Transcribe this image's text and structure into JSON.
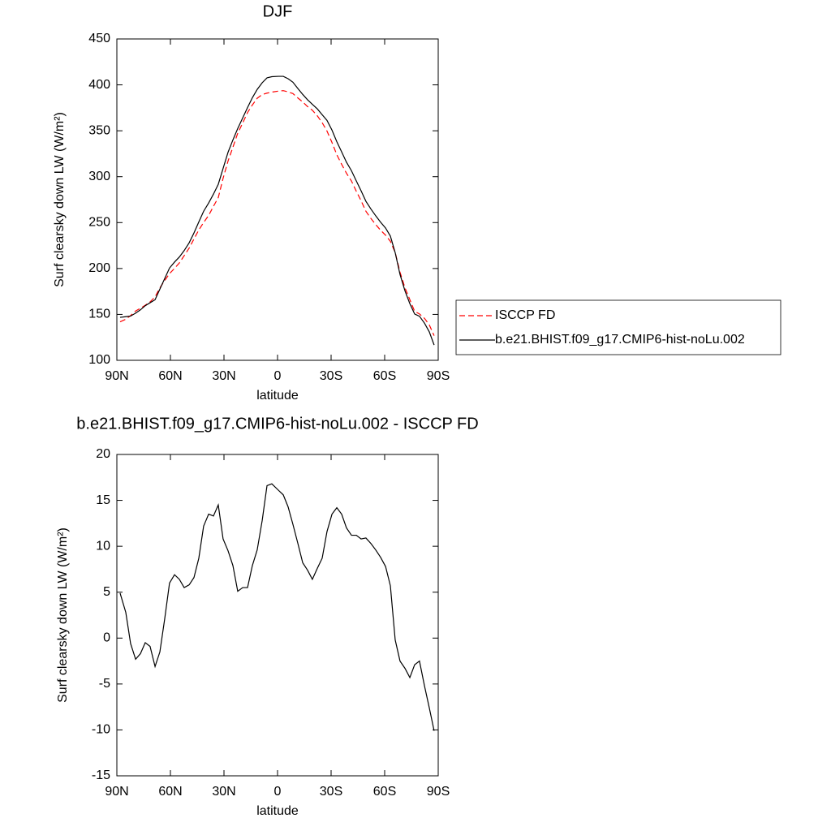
{
  "chart_data": [
    {
      "type": "line",
      "title": "DJF",
      "x_label": "latitude",
      "y_label": "Surf clearsky down LW (W/m²)",
      "x": [
        88.2,
        85.0,
        82.3,
        79.5,
        76.8,
        74.1,
        71.4,
        68.6,
        65.9,
        63.2,
        60.5,
        57.7,
        55.0,
        52.3,
        49.5,
        46.8,
        44.1,
        41.4,
        38.6,
        35.9,
        33.2,
        30.5,
        27.7,
        25.0,
        22.3,
        19.5,
        16.8,
        14.1,
        11.4,
        8.6,
        5.9,
        3.2,
        -0.5,
        -3.2,
        -5.9,
        -8.6,
        -11.4,
        -14.1,
        -16.8,
        -19.5,
        -22.3,
        -25.0,
        -27.7,
        -30.5,
        -33.2,
        -35.9,
        -38.6,
        -41.4,
        -44.1,
        -46.8,
        -49.5,
        -52.3,
        -55.0,
        -57.7,
        -60.5,
        -63.2,
        -65.9,
        -68.6,
        -71.4,
        -74.1,
        -76.8,
        -79.5,
        -82.3,
        -85.0,
        -87.7
      ],
      "series": [
        {
          "name": "ISCCP FD",
          "color": "#ff0000",
          "line_style": "dashed",
          "values": [
            141.9,
            144.7,
            148.8,
            153.7,
            156.7,
            160,
            163.6,
            169.1,
            179,
            186.9,
            194.5,
            200.1,
            206.1,
            214,
            222.2,
            232.2,
            242,
            250.1,
            257.8,
            267.7,
            277.2,
            298.2,
            317.2,
            332.1,
            347.3,
            358.5,
            369.8,
            378.1,
            385.4,
            389.5,
            391,
            392.1,
            393.2,
            393.7,
            392.4,
            390.5,
            385.7,
            381.4,
            376.4,
            372.4,
            366.2,
            358.8,
            349.7,
            337.2,
            323.9,
            313.5,
            303.8,
            295.3,
            284.2,
            273.8,
            262.3,
            254.5,
            247.8,
            241.7,
            236.3,
            229.6,
            217.4,
            196,
            178.8,
            166.1,
            153.3,
            150.5,
            145.7,
            138.6,
            126.8
          ]
        },
        {
          "name": "b.e21.BHIST.f09_g17.CMIP6-hist-noLu.002",
          "color": "#000000",
          "line_style": "solid",
          "values": [
            146.8,
            147.5,
            148.2,
            151.4,
            155,
            159.5,
            162.7,
            166,
            177.5,
            189,
            200.5,
            207,
            212.5,
            219.5,
            228,
            238.8,
            250.7,
            262.3,
            271.3,
            281,
            291.7,
            309,
            326.7,
            340,
            352.4,
            364,
            375.3,
            386,
            395,
            402.3,
            407.6,
            408.9,
            409.3,
            409.3,
            406.7,
            402.9,
            396,
            389.6,
            383.8,
            378.8,
            373.8,
            367.5,
            361.3,
            350.7,
            338.1,
            327,
            315.8,
            306.5,
            295.4,
            284.6,
            273.2,
            264.8,
            257.4,
            250.5,
            244.1,
            235.3,
            217.2,
            193.5,
            175.5,
            161.8,
            150.4,
            148,
            140.5,
            131,
            116.7
          ]
        }
      ],
      "xlim": [
        90,
        -90
      ],
      "xticks": [
        {
          "value": 90,
          "label": "90N"
        },
        {
          "value": 60,
          "label": "60N"
        },
        {
          "value": 30,
          "label": "30N"
        },
        0,
        {
          "value": -30,
          "label": "30S"
        },
        {
          "value": -60,
          "label": "60S"
        },
        {
          "value": -90,
          "label": "90S"
        }
      ],
      "ylim": [
        100,
        450
      ],
      "yticks": [
        100,
        150,
        200,
        250,
        300,
        350,
        400,
        450
      ],
      "legend": "outside right"
    },
    {
      "type": "line",
      "title": "b.e21.BHIST.f09_g17.CMIP6-hist-noLu.002 - ISCCP FD",
      "x_label": "latitude",
      "y_label": "Surf clearsky down LW (W/m²)",
      "x": [
        88.2,
        85.0,
        82.3,
        79.5,
        76.8,
        74.1,
        71.4,
        68.6,
        65.9,
        63.2,
        60.5,
        57.7,
        55.0,
        52.3,
        49.5,
        46.8,
        44.1,
        41.4,
        38.6,
        35.9,
        33.2,
        30.5,
        27.7,
        25.0,
        22.3,
        19.5,
        16.8,
        14.1,
        11.4,
        8.6,
        5.9,
        3.2,
        -0.5,
        -3.2,
        -5.9,
        -8.6,
        -11.4,
        -14.1,
        -16.8,
        -19.5,
        -22.3,
        -25.0,
        -27.7,
        -30.5,
        -33.2,
        -35.9,
        -38.6,
        -41.4,
        -44.1,
        -46.8,
        -49.5,
        -52.3,
        -55.0,
        -57.7,
        -60.5,
        -63.2,
        -65.9,
        -68.6,
        -71.4,
        -74.1,
        -76.8,
        -79.5,
        -82.3,
        -85.0,
        -87.7
      ],
      "series": [
        {
          "color": "#000000",
          "line_style": "solid",
          "values": [
            4.9,
            2.8,
            -0.6,
            -2.3,
            -1.7,
            -0.5,
            -0.9,
            -3.1,
            -1.5,
            2.1,
            6.0,
            6.9,
            6.4,
            5.5,
            5.8,
            6.6,
            8.7,
            12.2,
            13.5,
            13.3,
            14.5,
            10.8,
            9.5,
            7.9,
            5.1,
            5.5,
            5.5,
            7.9,
            9.6,
            12.8,
            16.6,
            16.8,
            16.1,
            15.6,
            14.3,
            12.4,
            10.3,
            8.2,
            7.4,
            6.4,
            7.6,
            8.7,
            11.6,
            13.5,
            14.2,
            13.5,
            12.0,
            11.2,
            11.2,
            10.8,
            10.9,
            10.3,
            9.6,
            8.8,
            7.8,
            5.7,
            -0.2,
            -2.5,
            -3.3,
            -4.3,
            -2.9,
            -2.5,
            -5.2,
            -7.6,
            -10.1
          ]
        }
      ],
      "xlim": [
        90,
        -90
      ],
      "xticks": [
        {
          "value": 90,
          "label": "90N"
        },
        {
          "value": 60,
          "label": "60N"
        },
        {
          "value": 30,
          "label": "30N"
        },
        0,
        {
          "value": -30,
          "label": "30S"
        },
        {
          "value": -60,
          "label": "60S"
        },
        {
          "value": -90,
          "label": "90S"
        }
      ],
      "ylim": [
        -15,
        20
      ],
      "yticks": [
        -15,
        -10,
        -5,
        0,
        5,
        10,
        15,
        20
      ]
    }
  ]
}
